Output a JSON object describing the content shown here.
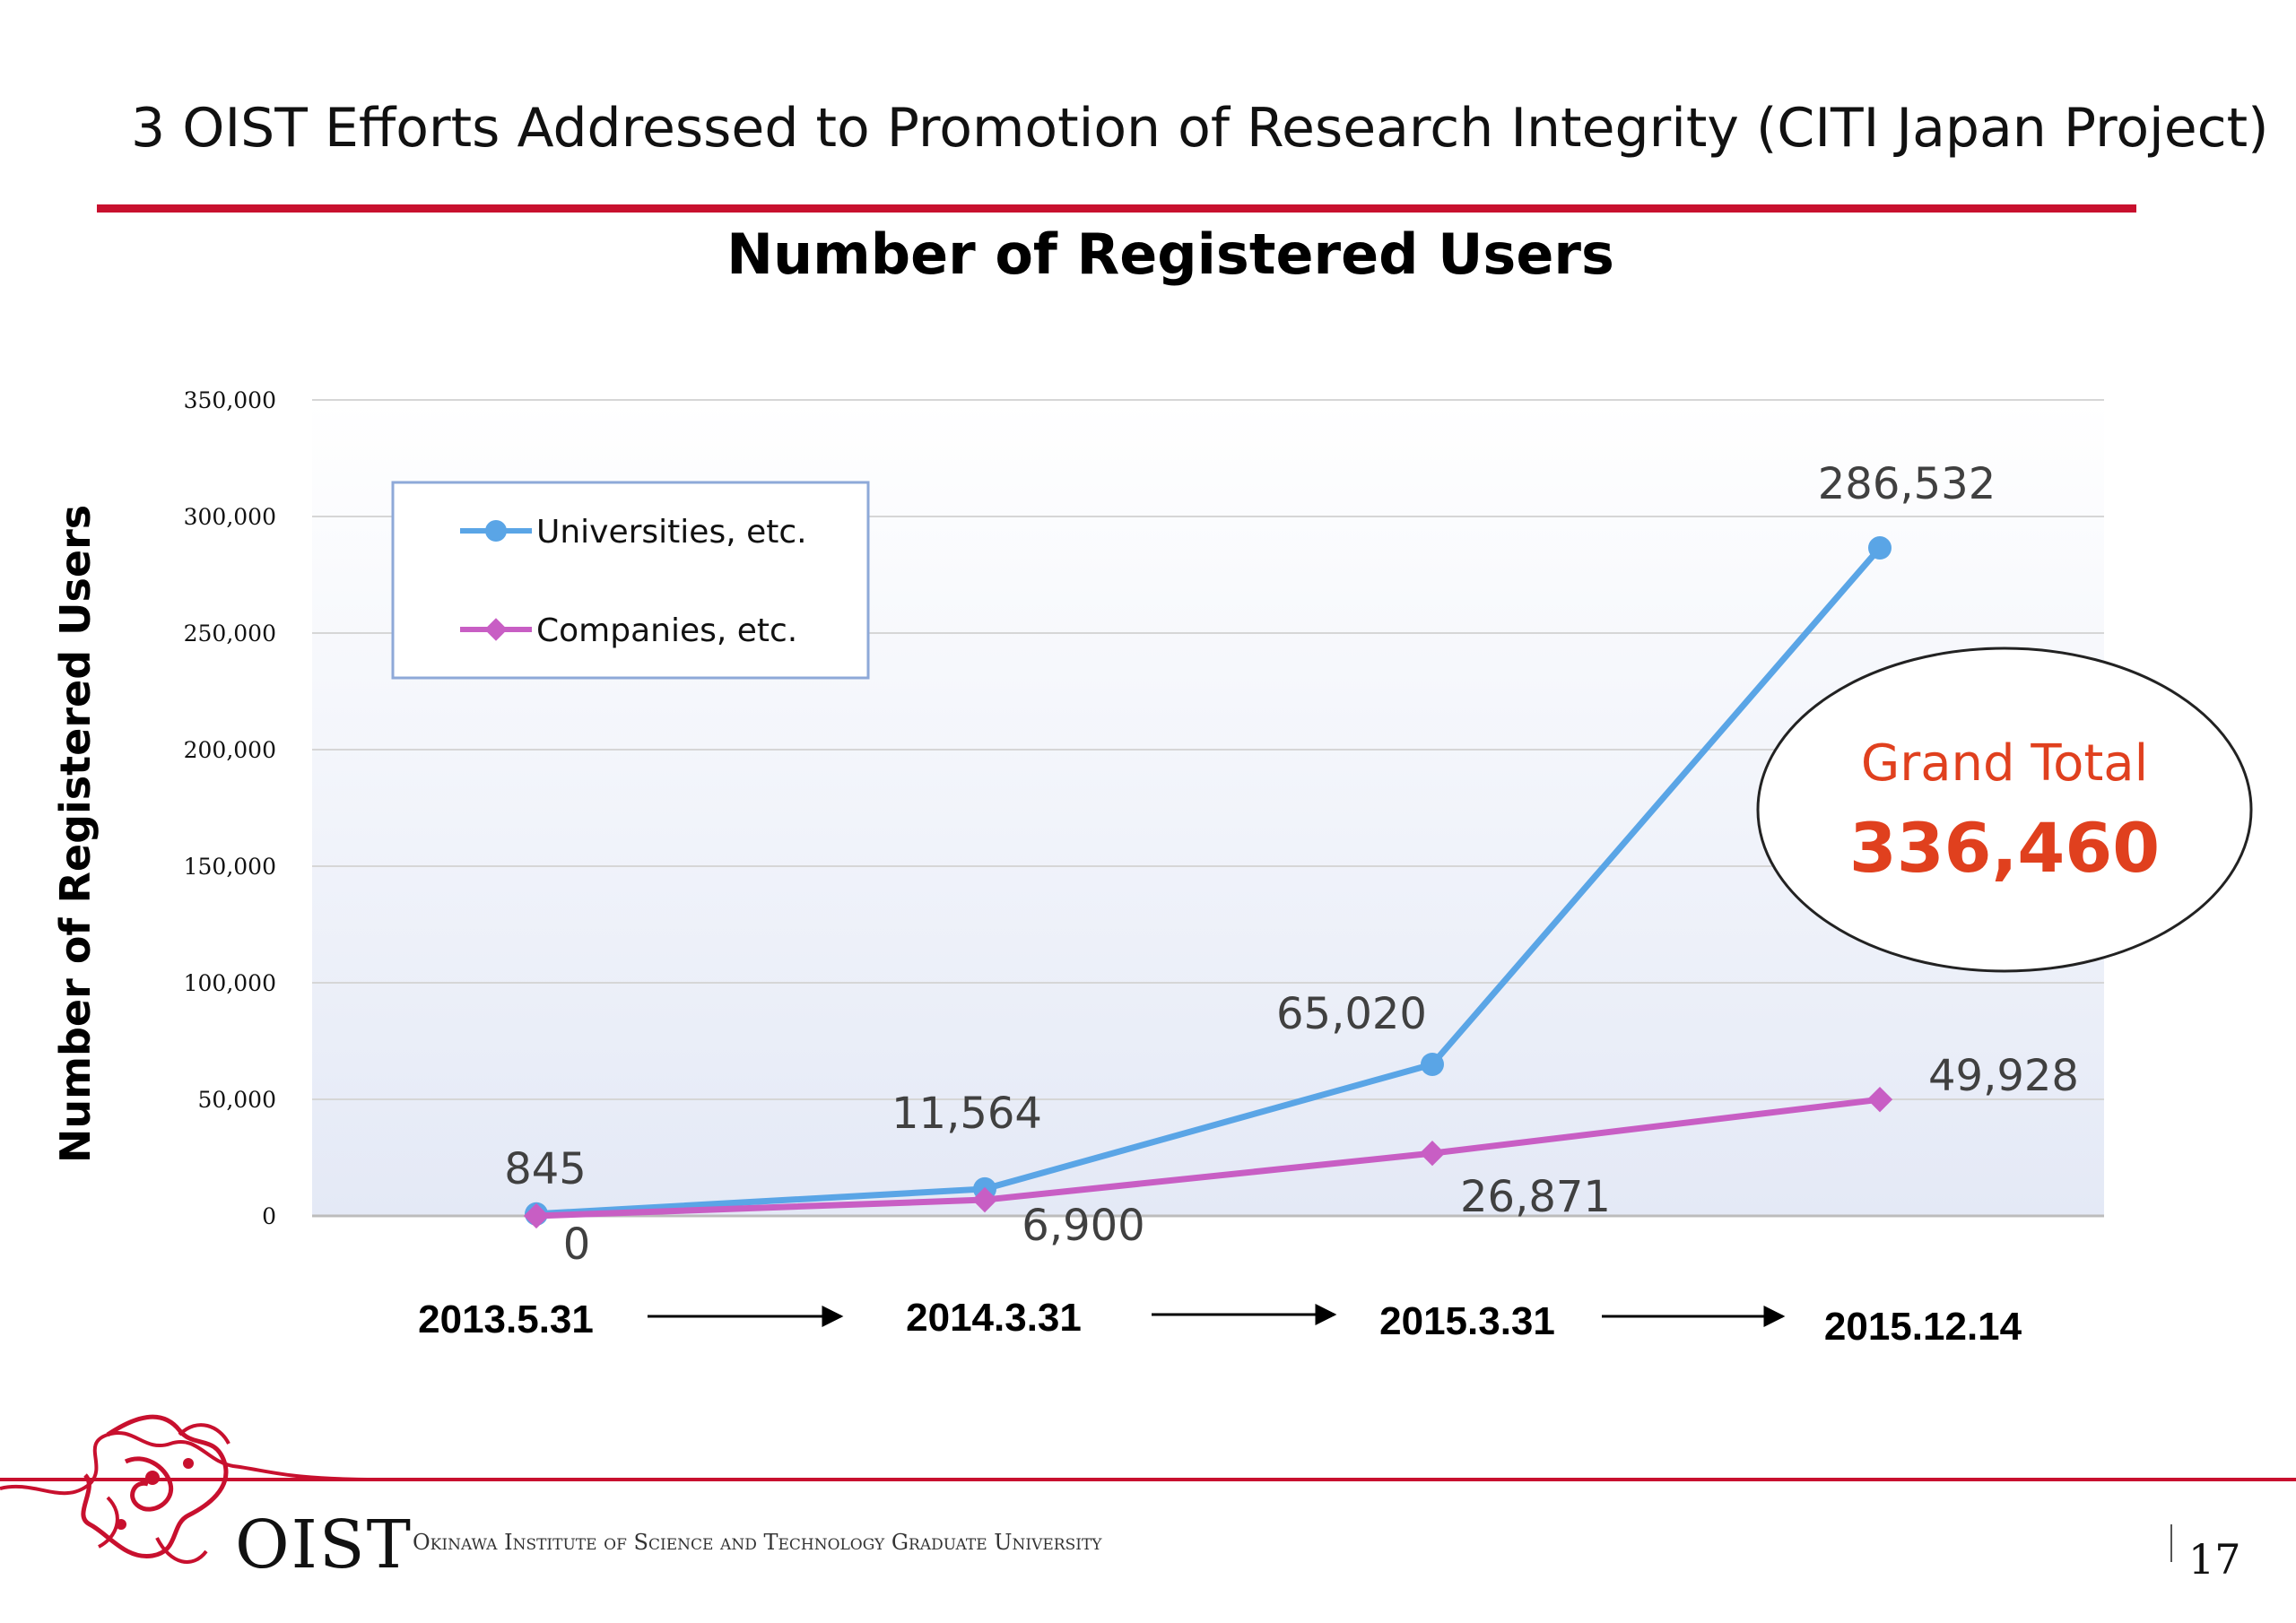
{
  "slide": {
    "title": "3 OIST Efforts Addressed to Promotion of Research Integrity (CITI Japan Project)",
    "page_number": "17",
    "accent_color": "#c8102e"
  },
  "footer": {
    "logo_text": "OIST",
    "institution": "Okinawa Institute of Science and Technology Graduate University"
  },
  "chart_data": {
    "type": "line",
    "title": "Number of Registered Users",
    "ylabel": "Number of Registered Users",
    "xlabel": "",
    "categories": [
      "2013.5.31",
      "2014.3.31",
      "2015.3.31",
      "2015.12.14"
    ],
    "ylim": [
      0,
      350000
    ],
    "yticks": [
      0,
      50000,
      100000,
      150000,
      200000,
      250000,
      300000,
      350000
    ],
    "ytick_labels": [
      "0",
      "50,000",
      "100,000",
      "150,000",
      "200,000",
      "250,000",
      "300,000",
      "350,000"
    ],
    "grid": true,
    "legend_position": "top-left",
    "series": [
      {
        "name": "Universities, etc.",
        "values": [
          845,
          11564,
          65020,
          286532
        ],
        "labels": [
          "845",
          "11,564",
          "65,020",
          "286,532"
        ],
        "color": "#5aa5e6",
        "marker": "circle"
      },
      {
        "name": "Companies, etc.",
        "values": [
          0,
          6900,
          26871,
          49928
        ],
        "labels": [
          "0",
          "6,900",
          "26,871",
          "49,928"
        ],
        "color": "#c85ec4",
        "marker": "diamond"
      }
    ],
    "callout": {
      "label": "Grand Total",
      "value": "336,460",
      "color": "#e0401e"
    }
  }
}
